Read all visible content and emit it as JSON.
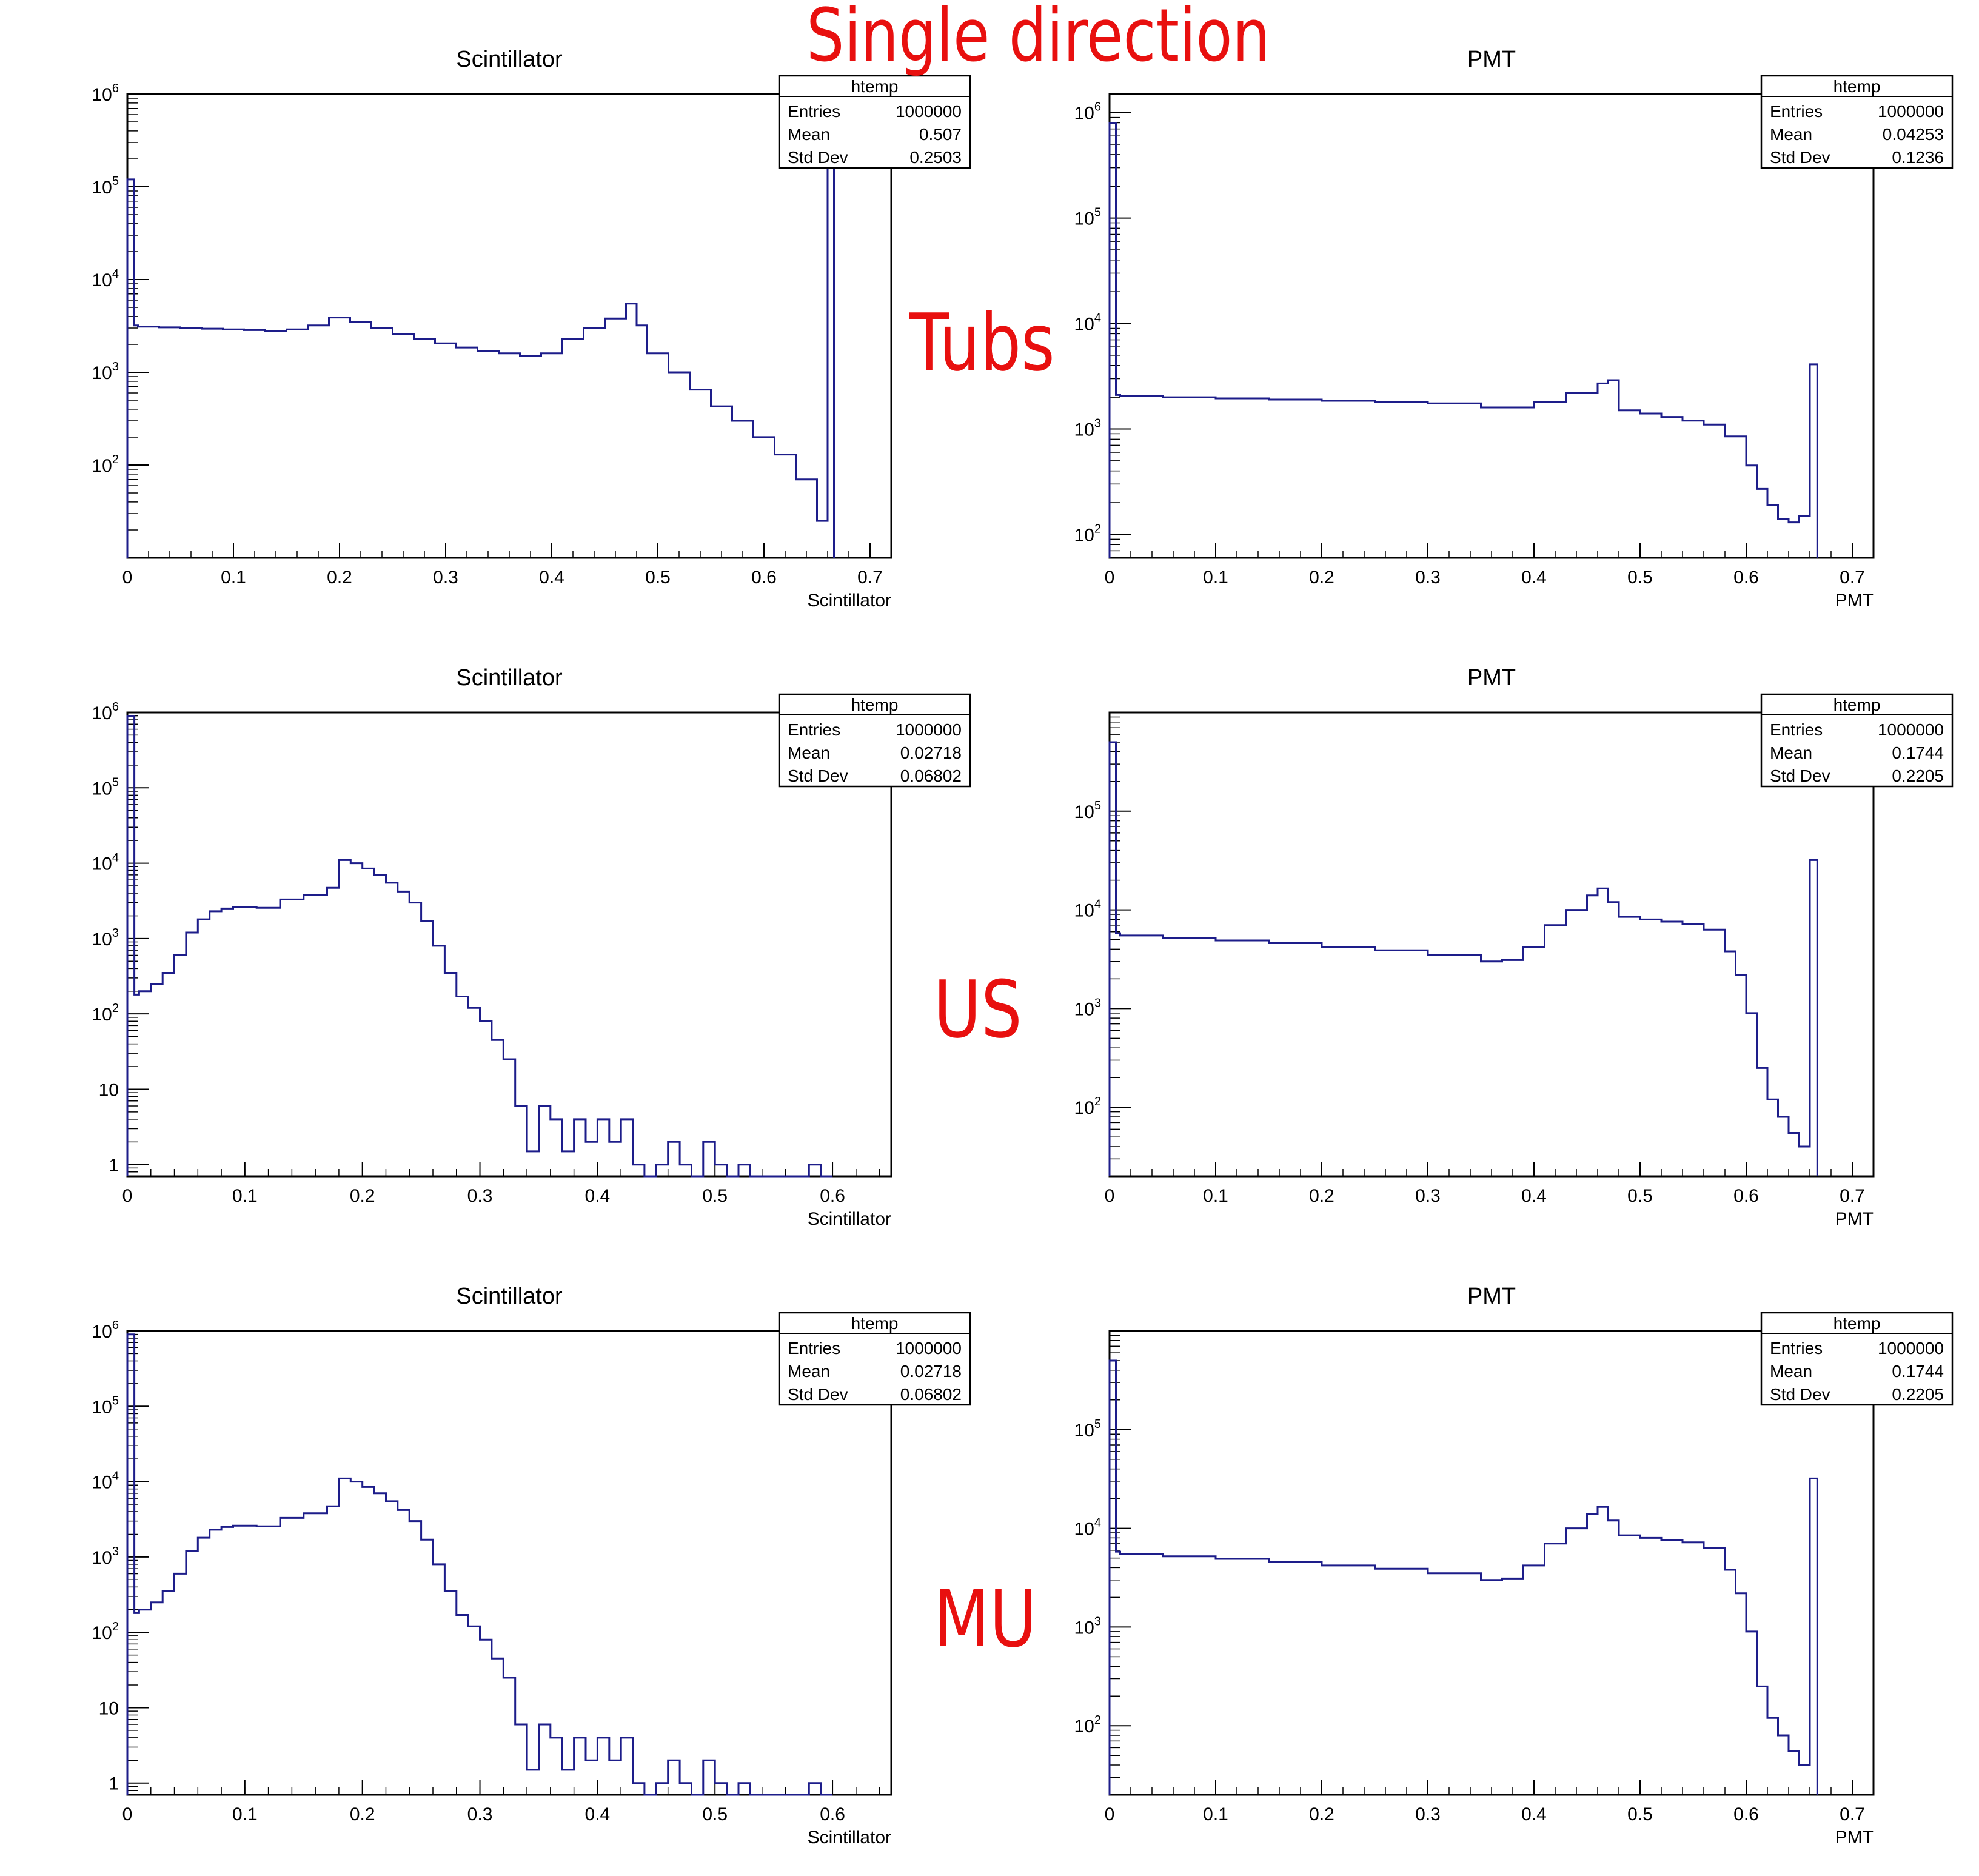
{
  "figure": {
    "title": "Single direction",
    "row_labels": [
      "Tubs",
      "US",
      "MU"
    ],
    "hist_color": "#1d1d8a",
    "label_color": "#e8100f"
  },
  "chart_data": [
    {
      "type": "histogram",
      "title": "Scintillator",
      "xlabel": "Scintillator",
      "ylog": true,
      "xlim": [
        0,
        0.72
      ],
      "ylim": [
        10,
        1000000
      ],
      "xticks": [
        "0",
        "0.1",
        "0.2",
        "0.3",
        "0.4",
        "0.5",
        "0.6",
        "0.7"
      ],
      "yticks": [
        "10^2",
        "10^3",
        "10^4",
        "10^5",
        "10^6"
      ],
      "stats": {
        "name": "htemp",
        "rows": [
          [
            "Entries",
            "1000000"
          ],
          [
            "Mean",
            "0.507"
          ],
          [
            "Std Dev",
            "0.2503"
          ]
        ]
      },
      "x": [
        0,
        0.006,
        0.01,
        0.03,
        0.05,
        0.07,
        0.09,
        0.11,
        0.13,
        0.15,
        0.17,
        0.19,
        0.21,
        0.23,
        0.25,
        0.27,
        0.29,
        0.31,
        0.33,
        0.35,
        0.37,
        0.39,
        0.41,
        0.43,
        0.45,
        0.47,
        0.48,
        0.49,
        0.51,
        0.53,
        0.55,
        0.57,
        0.59,
        0.61,
        0.63,
        0.65,
        0.66,
        0.666
      ],
      "y": [
        120000,
        3200,
        3100,
        3050,
        3000,
        2950,
        2900,
        2850,
        2800,
        2900,
        3200,
        3900,
        3500,
        3000,
        2600,
        2300,
        2050,
        1850,
        1700,
        1600,
        1500,
        1600,
        2300,
        3000,
        3800,
        5500,
        3200,
        1600,
        1000,
        650,
        430,
        300,
        200,
        130,
        70,
        25,
        700000,
        0
      ]
    },
    {
      "type": "histogram",
      "title": "PMT",
      "xlabel": "PMT",
      "ylog": true,
      "xlim": [
        0,
        0.72
      ],
      "ylim": [
        60,
        1500000
      ],
      "xticks": [
        "0",
        "0.1",
        "0.2",
        "0.3",
        "0.4",
        "0.5",
        "0.6",
        "0.7"
      ],
      "yticks": [
        "10^2",
        "10^3",
        "10^4",
        "10^5",
        "10^6"
      ],
      "stats": {
        "name": "htemp",
        "rows": [
          [
            "Entries",
            "1000000"
          ],
          [
            "Mean",
            "0.04253"
          ],
          [
            "Std Dev",
            "0.1236"
          ]
        ]
      },
      "x": [
        0,
        0.006,
        0.01,
        0.05,
        0.1,
        0.15,
        0.2,
        0.25,
        0.3,
        0.35,
        0.4,
        0.43,
        0.46,
        0.47,
        0.48,
        0.5,
        0.52,
        0.54,
        0.56,
        0.58,
        0.6,
        0.61,
        0.62,
        0.63,
        0.64,
        0.65,
        0.66,
        0.667
      ],
      "y": [
        800000,
        2100,
        2050,
        2000,
        1950,
        1900,
        1850,
        1800,
        1750,
        1600,
        1800,
        2200,
        2700,
        2900,
        1500,
        1400,
        1300,
        1200,
        1100,
        850,
        450,
        270,
        190,
        140,
        130,
        150,
        4100,
        0
      ]
    },
    {
      "type": "histogram",
      "title": "Scintillator",
      "xlabel": "Scintillator",
      "ylog": true,
      "xlim": [
        0,
        0.65
      ],
      "ylim": [
        0.7,
        1000000
      ],
      "xticks": [
        "0",
        "0.1",
        "0.2",
        "0.3",
        "0.4",
        "0.5",
        "0.6"
      ],
      "yticks": [
        "1",
        "10",
        "10^2",
        "10^3",
        "10^4",
        "10^5",
        "10^6"
      ],
      "stats": {
        "name": "htemp",
        "rows": [
          [
            "Entries",
            "1000000"
          ],
          [
            "Mean",
            "0.02718"
          ],
          [
            "Std Dev",
            "0.06802"
          ]
        ]
      },
      "x": [
        0,
        0.006,
        0.01,
        0.02,
        0.03,
        0.04,
        0.05,
        0.06,
        0.07,
        0.08,
        0.09,
        0.11,
        0.13,
        0.15,
        0.17,
        0.18,
        0.19,
        0.2,
        0.21,
        0.22,
        0.23,
        0.24,
        0.25,
        0.26,
        0.27,
        0.28,
        0.29,
        0.3,
        0.31,
        0.32,
        0.33,
        0.34,
        0.35,
        0.36,
        0.37,
        0.38,
        0.39,
        0.4,
        0.41,
        0.42,
        0.43,
        0.44,
        0.45,
        0.46,
        0.47,
        0.48,
        0.49,
        0.5,
        0.51,
        0.52,
        0.53,
        0.54,
        0.55,
        0.58,
        0.59,
        0.6
      ],
      "y": [
        900000,
        180,
        200,
        250,
        350,
        600,
        1200,
        1800,
        2300,
        2500,
        2600,
        2550,
        3300,
        3800,
        4700,
        11000,
        10000,
        8500,
        7000,
        5500,
        4200,
        3000,
        1700,
        800,
        350,
        170,
        120,
        80,
        45,
        25,
        6,
        1.5,
        6,
        4,
        1.5,
        4,
        2,
        4,
        2,
        4,
        1,
        0,
        1,
        2,
        1,
        0,
        2,
        1,
        0,
        1,
        0,
        0,
        0,
        1,
        0,
        0
      ]
    },
    {
      "type": "histogram",
      "title": "PMT",
      "xlabel": "PMT",
      "ylog": true,
      "xlim": [
        0,
        0.72
      ],
      "ylim": [
        20,
        1000000
      ],
      "xticks": [
        "0",
        "0.1",
        "0.2",
        "0.3",
        "0.4",
        "0.5",
        "0.6",
        "0.7"
      ],
      "yticks": [
        "10^2",
        "10^3",
        "10^4",
        "10^5"
      ],
      "stats": {
        "name": "htemp",
        "rows": [
          [
            "Entries",
            "1000000"
          ],
          [
            "Mean",
            "0.1744"
          ],
          [
            "Std Dev",
            "0.2205"
          ]
        ]
      },
      "x": [
        0,
        0.006,
        0.01,
        0.05,
        0.1,
        0.15,
        0.2,
        0.25,
        0.3,
        0.35,
        0.37,
        0.39,
        0.41,
        0.43,
        0.45,
        0.46,
        0.47,
        0.48,
        0.5,
        0.52,
        0.54,
        0.56,
        0.58,
        0.59,
        0.6,
        0.61,
        0.62,
        0.63,
        0.64,
        0.65,
        0.66,
        0.667
      ],
      "y": [
        500000,
        5800,
        5500,
        5200,
        4900,
        4600,
        4200,
        3900,
        3500,
        3000,
        3100,
        4200,
        7000,
        10000,
        14000,
        16500,
        12000,
        8500,
        8000,
        7600,
        7200,
        6300,
        3800,
        2200,
        900,
        250,
        120,
        80,
        55,
        40,
        32000,
        0
      ]
    },
    {
      "type": "histogram",
      "title": "Scintillator",
      "xlabel": "Scintillator",
      "ylog": true,
      "xlim": [
        0,
        0.65
      ],
      "ylim": [
        0.7,
        1000000
      ],
      "xticks": [
        "0",
        "0.1",
        "0.2",
        "0.3",
        "0.4",
        "0.5",
        "0.6"
      ],
      "yticks": [
        "1",
        "10",
        "10^2",
        "10^3",
        "10^4",
        "10^5",
        "10^6"
      ],
      "stats": {
        "name": "htemp",
        "rows": [
          [
            "Entries",
            "1000000"
          ],
          [
            "Mean",
            "0.02718"
          ],
          [
            "Std Dev",
            "0.06802"
          ]
        ]
      },
      "x": [
        0,
        0.006,
        0.01,
        0.02,
        0.03,
        0.04,
        0.05,
        0.06,
        0.07,
        0.08,
        0.09,
        0.11,
        0.13,
        0.15,
        0.17,
        0.18,
        0.19,
        0.2,
        0.21,
        0.22,
        0.23,
        0.24,
        0.25,
        0.26,
        0.27,
        0.28,
        0.29,
        0.3,
        0.31,
        0.32,
        0.33,
        0.34,
        0.35,
        0.36,
        0.37,
        0.38,
        0.39,
        0.4,
        0.41,
        0.42,
        0.43,
        0.44,
        0.45,
        0.46,
        0.47,
        0.48,
        0.49,
        0.5,
        0.51,
        0.52,
        0.53,
        0.54,
        0.55,
        0.58,
        0.59,
        0.6
      ],
      "y": [
        900000,
        180,
        200,
        250,
        350,
        600,
        1200,
        1800,
        2300,
        2500,
        2600,
        2550,
        3300,
        3800,
        4700,
        11000,
        10000,
        8500,
        7000,
        5500,
        4200,
        3000,
        1700,
        800,
        350,
        170,
        120,
        80,
        45,
        25,
        6,
        1.5,
        6,
        4,
        1.5,
        4,
        2,
        4,
        2,
        4,
        1,
        0,
        1,
        2,
        1,
        0,
        2,
        1,
        0,
        1,
        0,
        0,
        0,
        1,
        0,
        0
      ]
    },
    {
      "type": "histogram",
      "title": "PMT",
      "xlabel": "PMT",
      "ylog": true,
      "xlim": [
        0,
        0.72
      ],
      "ylim": [
        20,
        1000000
      ],
      "xticks": [
        "0",
        "0.1",
        "0.2",
        "0.3",
        "0.4",
        "0.5",
        "0.6",
        "0.7"
      ],
      "yticks": [
        "10^2",
        "10^3",
        "10^4",
        "10^5"
      ],
      "stats": {
        "name": "htemp",
        "rows": [
          [
            "Entries",
            "1000000"
          ],
          [
            "Mean",
            "0.1744"
          ],
          [
            "Std Dev",
            "0.2205"
          ]
        ]
      },
      "x": [
        0,
        0.006,
        0.01,
        0.05,
        0.1,
        0.15,
        0.2,
        0.25,
        0.3,
        0.35,
        0.37,
        0.39,
        0.41,
        0.43,
        0.45,
        0.46,
        0.47,
        0.48,
        0.5,
        0.52,
        0.54,
        0.56,
        0.58,
        0.59,
        0.6,
        0.61,
        0.62,
        0.63,
        0.64,
        0.65,
        0.66,
        0.667
      ],
      "y": [
        500000,
        5800,
        5500,
        5200,
        4900,
        4600,
        4200,
        3900,
        3500,
        3000,
        3100,
        4200,
        7000,
        10000,
        14000,
        16500,
        12000,
        8500,
        8000,
        7600,
        7200,
        6300,
        3800,
        2200,
        900,
        250,
        120,
        80,
        55,
        40,
        32000,
        0
      ]
    }
  ]
}
